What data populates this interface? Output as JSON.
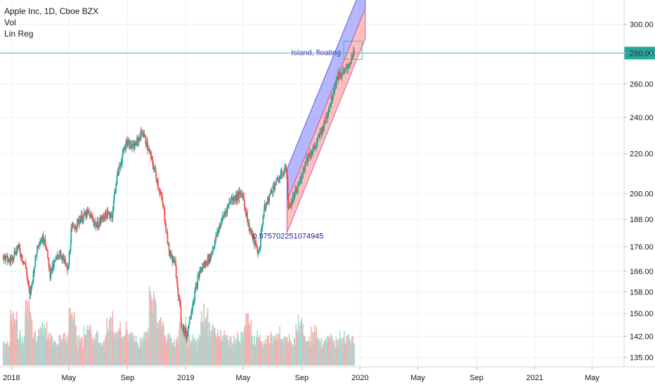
{
  "legend": {
    "symbol": "Apple Inc, 1D, Cboe BZX",
    "study_1": "Vol",
    "study_2": "Lin Reg"
  },
  "annotations": {
    "island_label": "Island, floating",
    "correlation_label": "0.975702251074945",
    "last_price": "280.02"
  },
  "colors": {
    "up": "#26a69a",
    "down": "#ef5350",
    "volume_up": "#a8d8d2",
    "volume_down": "#f6b0ae",
    "channel_upper": "#7b7bff",
    "channel_lower": "#ff8a8a",
    "price_line": "#40bfb0",
    "grid": "#eef0f3",
    "text": "#131722",
    "annotation_text": "#4a3fbf"
  },
  "chart_data": {
    "type": "candlestick",
    "title": "Apple Inc, 1D, Cboe BZX",
    "x_ticks": [
      "2018",
      "May",
      "Sep",
      "2019",
      "May",
      "Sep",
      "2020",
      "May",
      "Sep",
      "2021",
      "May"
    ],
    "x_tick_dates": [
      "2018-01-01",
      "2018-05-01",
      "2018-09-01",
      "2019-01-01",
      "2019-05-01",
      "2019-09-01",
      "2020-01-01",
      "2020-05-01",
      "2020-09-01",
      "2021-01-01",
      "2021-05-01"
    ],
    "y_axis_scale": "log",
    "y_ticks": [
      300,
      280,
      260,
      240,
      220,
      200,
      188,
      176,
      166,
      158,
      150,
      142,
      135
    ],
    "ylim": [
      132,
      318
    ],
    "series": [
      {
        "name": "Price",
        "points": [
          [
            "2017-12-15",
            172
          ],
          [
            "2017-12-29",
            170
          ],
          [
            "2018-01-15",
            176
          ],
          [
            "2018-01-31",
            168
          ],
          [
            "2018-02-09",
            156
          ],
          [
            "2018-02-26",
            178
          ],
          [
            "2018-03-12",
            180
          ],
          [
            "2018-03-23",
            165
          ],
          [
            "2018-04-13",
            174
          ],
          [
            "2018-04-30",
            166
          ],
          [
            "2018-05-07",
            183
          ],
          [
            "2018-05-25",
            188
          ],
          [
            "2018-06-11",
            191
          ],
          [
            "2018-06-29",
            185
          ],
          [
            "2018-07-16",
            190
          ],
          [
            "2018-07-31",
            190
          ],
          [
            "2018-08-10",
            208
          ],
          [
            "2018-08-31",
            227
          ],
          [
            "2018-09-14",
            223
          ],
          [
            "2018-10-03",
            232
          ],
          [
            "2018-10-24",
            215
          ],
          [
            "2018-11-02",
            207
          ],
          [
            "2018-11-16",
            193
          ],
          [
            "2018-11-27",
            174
          ],
          [
            "2018-12-10",
            169
          ],
          [
            "2018-12-24",
            146
          ],
          [
            "2019-01-03",
            142
          ],
          [
            "2019-01-15",
            153
          ],
          [
            "2019-01-31",
            166
          ],
          [
            "2019-02-22",
            172
          ],
          [
            "2019-03-15",
            186
          ],
          [
            "2019-04-05",
            197
          ],
          [
            "2019-04-30",
            200
          ],
          [
            "2019-05-13",
            185
          ],
          [
            "2019-06-03",
            173
          ],
          [
            "2019-06-14",
            192
          ],
          [
            "2019-07-01",
            202
          ],
          [
            "2019-07-31",
            213
          ],
          [
            "2019-08-05",
            193
          ],
          [
            "2019-08-23",
            202
          ],
          [
            "2019-09-13",
            218
          ],
          [
            "2019-09-30",
            224
          ],
          [
            "2019-10-18",
            236
          ],
          [
            "2019-10-31",
            248
          ],
          [
            "2019-11-15",
            265
          ],
          [
            "2019-11-29",
            267
          ],
          [
            "2019-12-13",
            275
          ],
          [
            "2019-12-20",
            280
          ]
        ]
      }
    ],
    "volume": {
      "name": "Vol",
      "relative_levels": [
        0.25,
        0.55,
        0.3,
        0.7,
        0.35,
        0.4,
        0.3,
        0.25,
        0.3,
        0.6,
        0.25,
        0.45,
        0.3,
        0.25,
        0.5,
        0.35,
        0.4,
        0.3,
        0.25,
        0.35,
        0.8,
        0.5,
        0.3,
        0.25,
        0.45,
        0.3,
        0.25,
        0.6,
        0.4,
        0.35,
        0.3,
        0.25,
        0.3,
        0.55,
        0.3,
        0.25,
        0.3,
        0.35,
        0.3,
        0.25,
        0.5,
        0.3,
        0.35,
        0.25,
        0.3,
        0.25,
        0.3,
        0.28
      ]
    },
    "regression_channel": {
      "name": "Lin Reg",
      "start": "2019-08-01",
      "end": "2020-01-12",
      "lower_start": 182,
      "upper_start": 212,
      "lower_end": 290,
      "upper_end": 335,
      "correlation": 0.975702251074945
    },
    "last_price": 280.02,
    "grid": true,
    "legend_position": "top-left"
  }
}
